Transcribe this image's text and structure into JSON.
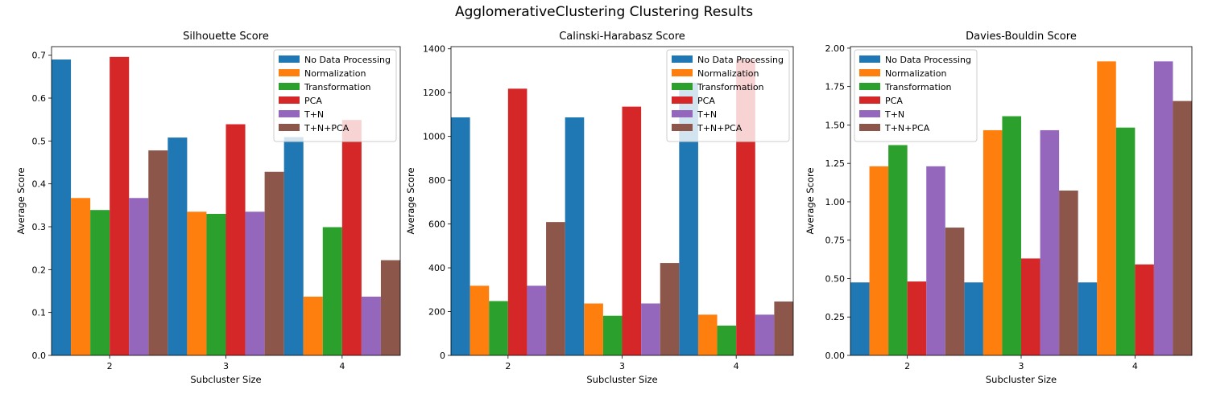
{
  "figure": {
    "suptitle": "AgglomerativeClustering Clustering Results"
  },
  "colors": [
    "#1f77b4",
    "#ff7f0e",
    "#2ca02c",
    "#d62728",
    "#9467bd",
    "#8c564b"
  ],
  "chart_data": [
    {
      "type": "bar",
      "title": "Silhouette Score",
      "xlabel": "Subcluster Size",
      "ylabel": "Average Score",
      "categories": [
        "2",
        "3",
        "4"
      ],
      "ylim": [
        0,
        0.72
      ],
      "yticks": [
        0.0,
        0.1,
        0.2,
        0.3,
        0.4,
        0.5,
        0.6,
        0.7
      ],
      "ytick_labels": [
        "0.0",
        "0.1",
        "0.2",
        "0.3",
        "0.4",
        "0.5",
        "0.6",
        "0.7"
      ],
      "legend_position": "top-right",
      "series": [
        {
          "name": "No Data Processing",
          "values": [
            0.69,
            0.508,
            0.509
          ]
        },
        {
          "name": "Normalization",
          "values": [
            0.367,
            0.335,
            0.137
          ]
        },
        {
          "name": "Transformation",
          "values": [
            0.339,
            0.33,
            0.299
          ]
        },
        {
          "name": "PCA",
          "values": [
            0.696,
            0.539,
            0.549
          ]
        },
        {
          "name": "T+N",
          "values": [
            0.367,
            0.335,
            0.137
          ]
        },
        {
          "name": "T+N+PCA",
          "values": [
            0.478,
            0.428,
            0.222
          ]
        }
      ]
    },
    {
      "type": "bar",
      "title": "Calinski-Harabasz Score",
      "xlabel": "Subcluster Size",
      "ylabel": "Average Score",
      "categories": [
        "2",
        "3",
        "4"
      ],
      "ylim": [
        0,
        1410
      ],
      "yticks": [
        0,
        200,
        400,
        600,
        800,
        1000,
        1200,
        1400
      ],
      "ytick_labels": [
        "0",
        "200",
        "400",
        "600",
        "800",
        "1000",
        "1200",
        "1400"
      ],
      "legend_position": "top-right",
      "series": [
        {
          "name": "No Data Processing",
          "values": [
            1087,
            1087,
            1245
          ]
        },
        {
          "name": "Normalization",
          "values": [
            318,
            237,
            186
          ]
        },
        {
          "name": "Transformation",
          "values": [
            248,
            181,
            136
          ]
        },
        {
          "name": "PCA",
          "values": [
            1218,
            1136,
            1350
          ]
        },
        {
          "name": "T+N",
          "values": [
            318,
            237,
            186
          ]
        },
        {
          "name": "T+N+PCA",
          "values": [
            609,
            422,
            246
          ]
        }
      ]
    },
    {
      "type": "bar",
      "title": "Davies-Bouldin Score",
      "xlabel": "Subcluster Size",
      "ylabel": "Average Score",
      "categories": [
        "2",
        "3",
        "4"
      ],
      "ylim": [
        0,
        2.01
      ],
      "yticks": [
        0.0,
        0.25,
        0.5,
        0.75,
        1.0,
        1.25,
        1.5,
        1.75,
        2.0
      ],
      "ytick_labels": [
        "0.00",
        "0.25",
        "0.50",
        "0.75",
        "1.00",
        "1.25",
        "1.50",
        "1.75",
        "2.00"
      ],
      "legend_position": "top-left",
      "series": [
        {
          "name": "No Data Processing",
          "values": [
            0.475,
            0.475,
            0.475
          ]
        },
        {
          "name": "Normalization",
          "values": [
            1.231,
            1.466,
            1.914
          ]
        },
        {
          "name": "Transformation",
          "values": [
            1.369,
            1.557,
            1.483
          ]
        },
        {
          "name": "PCA",
          "values": [
            0.481,
            0.631,
            0.592
          ]
        },
        {
          "name": "T+N",
          "values": [
            1.231,
            1.466,
            1.914
          ]
        },
        {
          "name": "T+N+PCA",
          "values": [
            0.832,
            1.073,
            1.656
          ]
        }
      ]
    }
  ]
}
